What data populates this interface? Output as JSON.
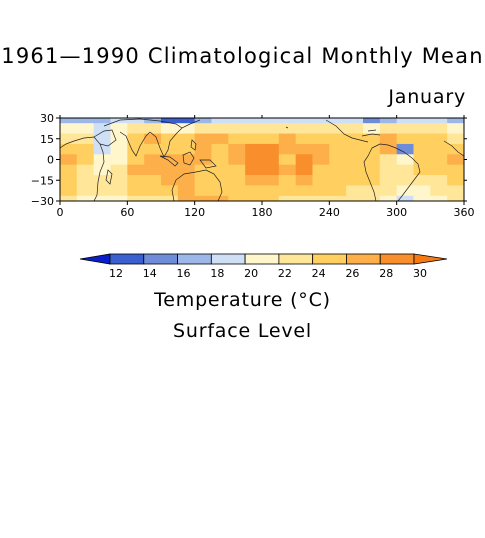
{
  "title": "1961—1990 Climatological Monthly Mean",
  "month": "January",
  "colorbar_label": "Temperature (°C)",
  "level_label": "Surface Level",
  "chart_data": {
    "type": "heatmap",
    "title": "1961—1990 Climatological Monthly Mean",
    "subtitle": "January",
    "xlim": [
      0,
      360
    ],
    "ylim": [
      -30,
      30
    ],
    "xticks": [
      "0",
      "60",
      "120",
      "180",
      "240",
      "300",
      "360"
    ],
    "yticks": [
      "30",
      "15",
      "0",
      "−15",
      "−30"
    ],
    "colorbar": {
      "label": "Temperature (°C)",
      "levels": [
        "12",
        "14",
        "16",
        "18",
        "20",
        "22",
        "24",
        "26",
        "28",
        "30"
      ],
      "colors": [
        "#0b1fc8",
        "#3a5fd0",
        "#6f8cd8",
        "#9db7e8",
        "#cfe0f6",
        "#fff6cc",
        "#ffe699",
        "#ffd060",
        "#fdb04a",
        "#f98f2c",
        "#f57a14"
      ]
    },
    "longitudes": [
      0,
      15,
      30,
      45,
      60,
      75,
      90,
      105,
      120,
      135,
      150,
      165,
      180,
      195,
      210,
      225,
      240,
      255,
      270,
      285,
      300,
      315,
      330,
      345
    ],
    "latitudes": [
      30,
      22.5,
      15,
      7.5,
      0,
      -7.5,
      -15,
      -22.5,
      -30
    ],
    "values": [
      [
        17,
        17,
        17,
        18,
        18,
        16,
        12,
        13,
        17,
        18,
        19,
        19,
        19,
        18,
        18,
        18,
        18,
        19,
        15,
        16,
        18,
        18,
        18,
        17
      ],
      [
        21,
        20,
        19,
        20,
        22,
        22,
        21,
        21,
        22,
        22,
        23,
        23,
        23,
        23,
        23,
        22,
        22,
        22,
        21,
        22,
        23,
        23,
        22,
        21
      ],
      [
        23,
        22,
        19,
        21,
        24,
        26,
        25,
        25,
        26,
        26,
        25,
        25,
        25,
        26,
        25,
        25,
        25,
        25,
        25,
        26,
        25,
        25,
        24,
        23
      ],
      [
        25,
        24,
        19,
        21,
        24,
        25,
        24,
        25,
        26,
        25,
        27,
        28,
        28,
        26,
        27,
        26,
        25,
        25,
        25,
        26,
        14,
        25,
        25,
        25
      ],
      [
        27,
        24,
        20,
        21,
        25,
        26,
        26,
        26,
        26,
        25,
        27,
        28,
        29,
        25,
        28,
        26,
        25,
        24,
        24,
        23,
        20,
        24,
        25,
        26
      ],
      [
        25,
        23,
        21,
        23,
        26,
        26,
        26,
        26,
        25,
        24,
        25,
        28,
        29,
        26,
        28,
        25,
        25,
        24,
        24,
        23,
        23,
        24,
        25,
        25
      ],
      [
        24,
        23,
        22,
        23,
        24,
        25,
        26,
        26,
        25,
        24,
        25,
        26,
        27,
        25,
        27,
        25,
        24,
        24,
        24,
        23,
        23,
        23,
        23,
        24
      ],
      [
        24,
        23,
        22,
        22,
        24,
        24,
        25,
        26,
        25,
        25,
        25,
        24,
        25,
        24,
        25,
        24,
        24,
        23,
        23,
        22,
        20,
        21,
        22,
        23
      ],
      [
        22,
        21,
        20,
        21,
        22,
        22,
        23,
        27,
        27,
        26,
        25,
        24,
        24,
        23,
        23,
        23,
        23,
        22,
        22,
        21,
        19,
        20,
        21,
        22
      ]
    ]
  }
}
